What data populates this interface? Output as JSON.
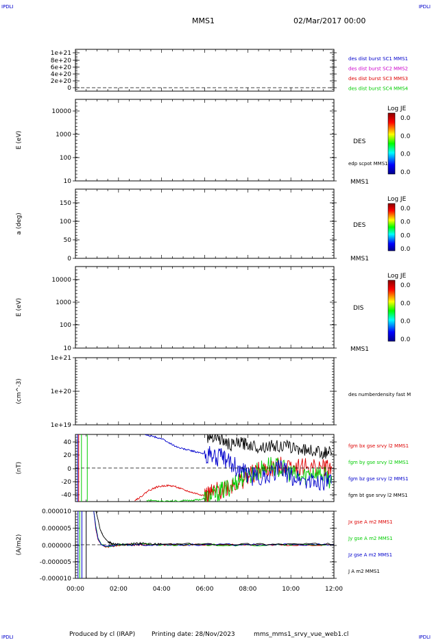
{
  "corner_label": "IPDLI",
  "header": {
    "mission": "MMS1",
    "datetime": "02/Mar/2017 00:00"
  },
  "footer": {
    "produced_by": "Produced by cl (IRAP)",
    "printing_date": "Printing date: 28/Nov/2023",
    "script": "mms_mms1_srvy_vue_web1.cl"
  },
  "colors": {
    "blue": "#0000cc",
    "magenta": "#cc00cc",
    "red": "#dd0000",
    "green": "#00cc00",
    "black": "#000000"
  },
  "colorbar": {
    "title": "Log JE",
    "ticks": [
      "0.0",
      "0.0",
      "0.0",
      "0.0"
    ]
  },
  "panels": [
    {
      "id": "dist-burst",
      "ylabel": "",
      "yticks": [
        "1e+21",
        "8e+20",
        "6e+20",
        "4e+20",
        "2e+20",
        "0"
      ],
      "legend": [
        {
          "text": "des dist burst SC1 MMS1",
          "color": "#0000cc"
        },
        {
          "text": "des dist burst SC2 MMS2",
          "color": "#cc00cc"
        },
        {
          "text": "des dist burst SC3 MMS3",
          "color": "#dd0000"
        },
        {
          "text": "des dist burst SC4 MMS4",
          "color": "#00cc00"
        }
      ]
    },
    {
      "id": "des-energy",
      "ylabel": "E (eV)",
      "yticks": [
        "10000",
        "1000",
        "100",
        "10"
      ],
      "instrument": "DES",
      "spacecraft": "MMS1",
      "overlay": "edp scpot MMS1"
    },
    {
      "id": "des-pitch",
      "ylabel": "a (deg)",
      "yticks": [
        "150",
        "100",
        "50",
        "0"
      ],
      "instrument": "DES",
      "spacecraft": "MMS1"
    },
    {
      "id": "dis-energy",
      "ylabel": "E (eV)",
      "yticks": [
        "10000",
        "1000",
        "100",
        "10"
      ],
      "instrument": "DIS",
      "spacecraft": "MMS1"
    },
    {
      "id": "density",
      "ylabel": "(cm^-3)",
      "yticks": [
        "1e+21",
        "1e+20",
        "1e+19"
      ],
      "legend": [
        {
          "text": "des numberdensity fast M",
          "color": "#000000"
        }
      ]
    },
    {
      "id": "bfield",
      "ylabel": "(nT)",
      "yticks": [
        "40",
        "20",
        "0",
        "-20",
        "-40"
      ],
      "legend": [
        {
          "text": "fgm bx gse srvy l2 MMS1",
          "color": "#dd0000"
        },
        {
          "text": "fgm by gse srvy l2 MMS1",
          "color": "#00cc00"
        },
        {
          "text": "fgm bz gse srvy l2 MMS1",
          "color": "#0000cc"
        },
        {
          "text": "fgm bt gse srvy l2 MMS1",
          "color": "#000000"
        }
      ]
    },
    {
      "id": "current",
      "ylabel": "(A/m2)",
      "yticks": [
        "0.000010",
        "0.000005",
        "0.000000",
        "-0.000005",
        "-0.000010"
      ],
      "legend": [
        {
          "text": "Jx gse A m2 MMS1",
          "color": "#dd0000"
        },
        {
          "text": "Jy gse A m2 MMS1",
          "color": "#00cc00"
        },
        {
          "text": "Jz gse A m2 MMS1",
          "color": "#0000cc"
        },
        {
          "text": "J A m2 MMS1",
          "color": "#000000"
        }
      ]
    }
  ],
  "xticks": [
    "00:00",
    "02:00",
    "04:00",
    "06:00",
    "08:00",
    "10:00",
    "12:00"
  ],
  "chart_data": [
    {
      "type": "line",
      "title": "",
      "ylabel": "(nT)",
      "x_unit": "hours since 02/Mar/2017 00:00",
      "xlim": [
        0,
        12
      ],
      "ylim": [
        -48,
        48
      ],
      "series": [
        {
          "name": "fgm bx gse srvy l2 MMS1",
          "color": "#dd0000",
          "x": [
            2.75,
            3.0,
            3.4,
            3.8,
            4.2,
            4.6,
            5.0,
            5.4,
            5.8,
            6.1,
            6.4,
            6.8,
            7.2,
            7.6,
            8.0,
            8.5,
            9.0,
            9.5,
            10.0,
            10.5,
            11.0,
            11.5,
            11.9
          ],
          "y": [
            -46,
            -42,
            -32,
            -27,
            -25,
            -26,
            -31,
            -35,
            -38,
            -40,
            -36,
            -30,
            -25,
            -20,
            -12,
            -5,
            -2,
            2,
            4,
            2,
            0,
            1,
            0
          ]
        },
        {
          "name": "fgm by gse srvy l2 MMS1",
          "color": "#00cc00",
          "x": [
            3.3,
            4.0,
            5.0,
            5.5,
            6.0,
            6.4,
            6.8,
            7.2,
            7.6,
            8.0,
            8.5,
            9.0,
            9.5,
            10.0,
            10.5,
            11.0,
            11.5,
            11.9
          ],
          "y": [
            -46,
            -47,
            -47,
            -46,
            -44,
            -40,
            -33,
            -26,
            -16,
            -10,
            -5,
            5,
            0,
            -8,
            -14,
            -4,
            -10,
            -18
          ]
        },
        {
          "name": "fgm bz gse srvy l2 MMS1",
          "color": "#0000cc",
          "x": [
            3.2,
            3.6,
            4.0,
            4.4,
            4.8,
            5.2,
            5.6,
            6.0,
            6.4,
            6.8,
            7.2,
            7.6,
            8.0,
            8.5,
            9.0,
            9.5,
            10.0,
            10.5,
            11.0,
            11.5,
            11.9
          ],
          "y": [
            48,
            45,
            42,
            35,
            29,
            26,
            23,
            20,
            17,
            14,
            8,
            -2,
            -10,
            -14,
            -8,
            0,
            -12,
            -16,
            -20,
            -18,
            -22
          ]
        },
        {
          "name": "fgm bt gse srvy l2 MMS1",
          "color": "#000000",
          "x": [
            6.1,
            6.4,
            6.8,
            7.2,
            7.6,
            8.0,
            8.5,
            9.0,
            9.5,
            10.0,
            10.5,
            11.0,
            11.5,
            11.9
          ],
          "y": [
            44,
            46,
            40,
            32,
            36,
            34,
            30,
            32,
            31,
            30,
            27,
            25,
            22,
            22
          ]
        }
      ]
    },
    {
      "type": "line",
      "title": "",
      "ylabel": "(A/m2)",
      "x_unit": "hours since 02/Mar/2017 00:00",
      "xlim": [
        0,
        12
      ],
      "ylim": [
        -1e-05,
        1e-05
      ],
      "series": [
        {
          "name": "Jx gse A m2 MMS1",
          "color": "#dd0000",
          "x": [
            0.85,
            0.95,
            1.05,
            1.2,
            1.4,
            1.6,
            2.0,
            2.5,
            3.0,
            4.0,
            6.0,
            8.0,
            10.0,
            12.0
          ],
          "y": [
            1e-05,
            4.5e-06,
            1.5e-06,
            1e-07,
            -7e-07,
            -5e-07,
            -2e-07,
            0.0,
            0.0,
            0.0,
            0.0,
            0.0,
            0.0,
            0.0
          ]
        },
        {
          "name": "Jy gse A m2 MMS1",
          "color": "#00cc00",
          "x": [
            0.85,
            0.95,
            1.05,
            1.2,
            1.4,
            1.6,
            2.0,
            2.5,
            3.0,
            4.0,
            6.0,
            8.0,
            10.0,
            12.0
          ],
          "y": [
            1e-05,
            5.5e-06,
            2e-06,
            2e-07,
            -6e-07,
            -4e-07,
            0.0,
            0.0,
            2e-07,
            0.0,
            0.0,
            -2e-07,
            0.0,
            0.0
          ]
        },
        {
          "name": "Jz gse A m2 MMS1",
          "color": "#0000cc",
          "x": [
            0.85,
            0.95,
            1.05,
            1.2,
            1.4,
            1.6,
            2.0,
            2.5,
            3.0,
            4.0,
            6.0,
            8.0,
            10.0,
            12.0
          ],
          "y": [
            1e-05,
            5e-06,
            1.8e-06,
            0.0,
            -5e-07,
            -3e-07,
            0.0,
            0.0,
            0.0,
            0.0,
            0.0,
            0.0,
            0.0,
            0.0
          ]
        },
        {
          "name": "J A m2 MMS1",
          "color": "#000000",
          "x": [
            0.95,
            1.05,
            1.15,
            1.3,
            1.5,
            1.7,
            2.0,
            2.5,
            3.0,
            3.3,
            4.0,
            6.0,
            8.0,
            10.0,
            12.0
          ],
          "y": [
            1e-05,
            7.5e-06,
            4.5e-06,
            2.5e-06,
            1e-06,
            3e-07,
            1e-07,
            2e-07,
            5e-07,
            2e-07,
            2e-07,
            2e-07,
            2e-07,
            2e-07,
            2e-07
          ]
        }
      ]
    }
  ]
}
